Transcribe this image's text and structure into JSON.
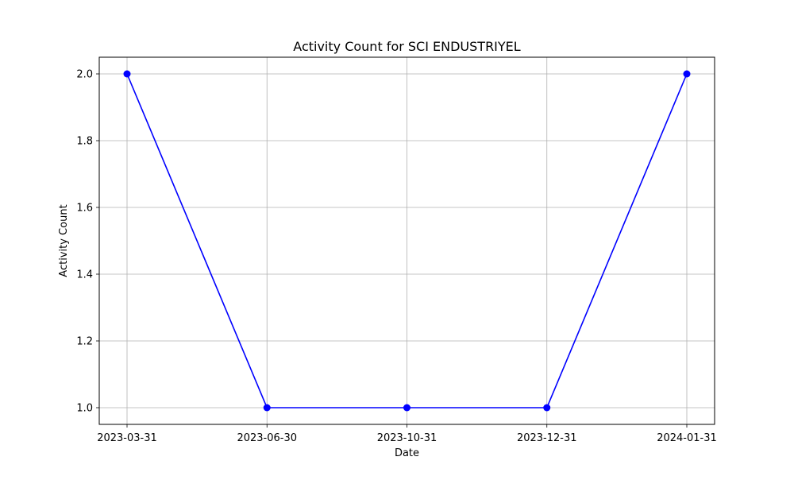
{
  "chart_data": {
    "type": "line",
    "title": "Activity Count for SCI ENDUSTRIYEL",
    "xlabel": "Date",
    "ylabel": "Activity Count",
    "categories": [
      "2023-03-31",
      "2023-06-30",
      "2023-10-31",
      "2023-12-31",
      "2024-01-31"
    ],
    "series": [
      {
        "values": [
          2.0,
          1.0,
          1.0,
          1.0,
          2.0
        ],
        "color": "#0000ff",
        "marker": "circle"
      }
    ],
    "y_ticks": [
      "1.0",
      "1.2",
      "1.4",
      "1.6",
      "1.8",
      "2.0"
    ],
    "ylim": [
      0.95,
      2.05
    ],
    "grid": true,
    "legend": "none"
  }
}
